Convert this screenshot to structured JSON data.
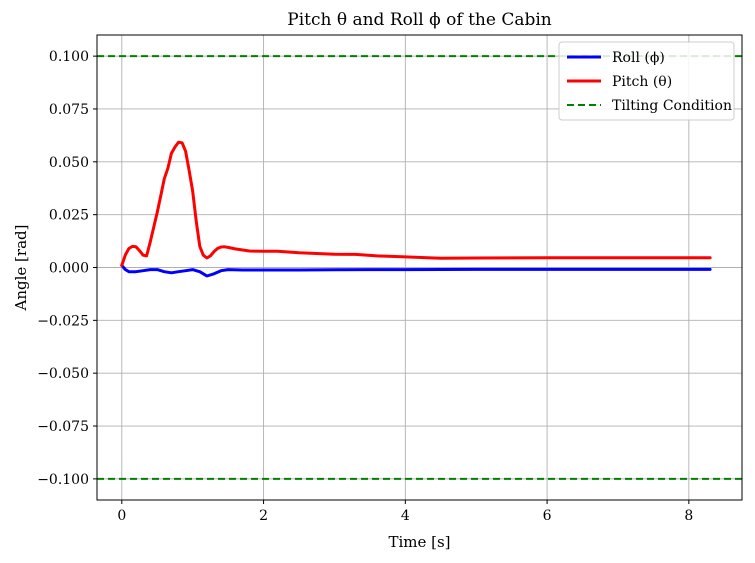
{
  "chart_data": {
    "type": "line",
    "title": "Pitch θ and Roll ϕ of the Cabin",
    "xlabel": "Time [s]",
    "ylabel": "Angle [rad]",
    "xlim": [
      -0.35,
      8.75
    ],
    "ylim": [
      -0.11,
      0.11
    ],
    "xticks": [
      0,
      2,
      4,
      6,
      8
    ],
    "yticks": [
      0.1,
      0.075,
      0.05,
      0.025,
      0.0,
      -0.025,
      -0.05,
      -0.075,
      -0.1
    ],
    "xtick_labels": [
      "0",
      "2",
      "4",
      "6",
      "8"
    ],
    "ytick_labels": [
      "0.100",
      "0.075",
      "0.050",
      "0.025",
      "0.000",
      "−0.025",
      "−0.050",
      "−0.075",
      "−0.100"
    ],
    "grid": true,
    "legend_position": "top-right",
    "series": [
      {
        "name": "Roll (ϕ)",
        "color": "#0000ff",
        "style": "solid",
        "x": [
          0.0,
          0.05,
          0.1,
          0.2,
          0.3,
          0.4,
          0.5,
          0.6,
          0.7,
          0.8,
          0.9,
          1.0,
          1.05,
          1.1,
          1.15,
          1.2,
          1.3,
          1.4,
          1.5,
          1.7,
          2.0,
          2.5,
          3.0,
          3.5,
          4.0,
          5.0,
          6.0,
          7.0,
          8.3
        ],
        "y": [
          0.001,
          -0.001,
          -0.002,
          -0.002,
          -0.0015,
          -0.001,
          -0.001,
          -0.002,
          -0.0025,
          -0.002,
          -0.0015,
          -0.001,
          -0.0015,
          -0.002,
          -0.003,
          -0.004,
          -0.003,
          -0.0015,
          -0.001,
          -0.0012,
          -0.0012,
          -0.0012,
          -0.0011,
          -0.001,
          -0.001,
          -0.0009,
          -0.0009,
          -0.0009,
          -0.0009
        ]
      },
      {
        "name": "Pitch (θ)",
        "color": "#ff0000",
        "style": "solid",
        "x": [
          0.0,
          0.05,
          0.1,
          0.15,
          0.2,
          0.25,
          0.3,
          0.35,
          0.4,
          0.45,
          0.5,
          0.55,
          0.6,
          0.65,
          0.7,
          0.75,
          0.8,
          0.85,
          0.9,
          0.95,
          1.0,
          1.05,
          1.1,
          1.15,
          1.2,
          1.25,
          1.3,
          1.35,
          1.4,
          1.45,
          1.5,
          1.6,
          1.8,
          2.0,
          2.2,
          2.5,
          3.0,
          3.3,
          3.6,
          4.0,
          4.5,
          5.0,
          6.0,
          7.0,
          8.3
        ],
        "y": [
          0.001,
          0.006,
          0.009,
          0.01,
          0.0098,
          0.008,
          0.0058,
          0.0055,
          0.012,
          0.019,
          0.026,
          0.034,
          0.042,
          0.047,
          0.054,
          0.057,
          0.0593,
          0.059,
          0.055,
          0.046,
          0.036,
          0.022,
          0.01,
          0.0058,
          0.0045,
          0.0055,
          0.0075,
          0.009,
          0.0097,
          0.0098,
          0.0095,
          0.0088,
          0.0078,
          0.0077,
          0.0077,
          0.007,
          0.0063,
          0.0062,
          0.0055,
          0.005,
          0.0044,
          0.0045,
          0.0046,
          0.0046,
          0.0046
        ]
      },
      {
        "name": "Tilting Condition",
        "color": "#008000",
        "style": "dashed",
        "hlines": [
          0.1,
          -0.1
        ]
      }
    ]
  }
}
